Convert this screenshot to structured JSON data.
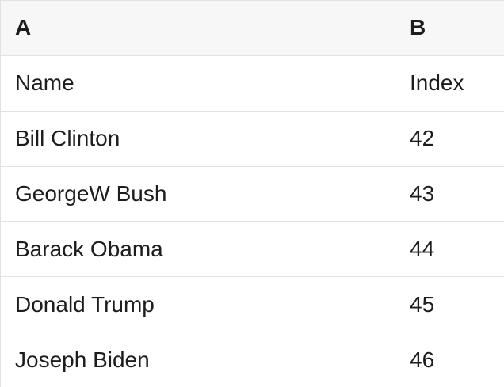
{
  "colors": {
    "header_bg": "#f7f7f7",
    "row_bg": "#ffffff",
    "border": "#e2e2e2",
    "text": "#1d1d1f"
  },
  "table": {
    "columns": [
      {
        "label": "A"
      },
      {
        "label": "B"
      }
    ],
    "rows": [
      [
        "Name",
        "Index"
      ],
      [
        "Bill Clinton",
        "42"
      ],
      [
        "GeorgeW Bush",
        "43"
      ],
      [
        "Barack Obama",
        "44"
      ],
      [
        "Donald Trump",
        "45"
      ],
      [
        "Joseph Biden",
        "46"
      ]
    ]
  }
}
